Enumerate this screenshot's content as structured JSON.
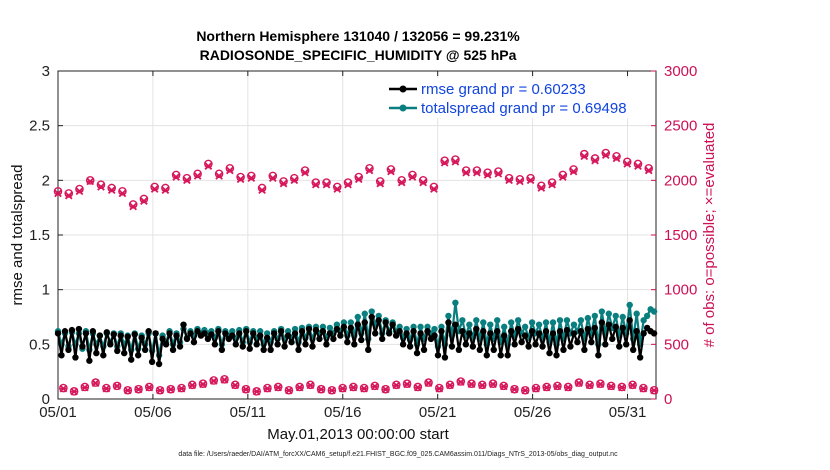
{
  "chart_data": {
    "type": "line",
    "title": "Northern Hemisphere 131040 / 132056 = 99.231%",
    "subtitle": "RADIOSONDE_SPECIFIC_HUMIDITY @ 525 hPa",
    "xlabel": "May.01,2013 00:00:00 start",
    "ylabel_left": "rmse and totalspread",
    "ylabel_right": "# of obs: o=possible; ×=evaluated",
    "xlim": [
      0,
      31.5
    ],
    "ylim_left": [
      0,
      3
    ],
    "ylim_right": [
      0,
      3000
    ],
    "grid": true,
    "x_ticks": [
      0,
      5,
      10,
      15,
      20,
      25,
      30
    ],
    "x_tick_labels": [
      "05/01",
      "05/06",
      "05/11",
      "05/16",
      "05/21",
      "05/26",
      "05/31"
    ],
    "y_left_ticks": [
      0,
      0.5,
      1,
      1.5,
      2,
      2.5,
      3
    ],
    "y_left_tick_labels": [
      "0",
      "0.5",
      "1",
      "1.5",
      "2",
      "2.5",
      "3"
    ],
    "y_right_ticks": [
      0,
      500,
      1000,
      1500,
      2000,
      2500,
      3000
    ],
    "y_right_tick_labels": [
      "0",
      "500",
      "1000",
      "1500",
      "2000",
      "2500",
      "3000"
    ],
    "legend_position": "top-right",
    "colors": {
      "rmse": "#000000",
      "spread": "#0b7f7f",
      "obs": "#d6175b"
    },
    "series": [
      {
        "name": "rmse grand pr = 0.60233",
        "axis": "left",
        "values": [
          0.6,
          0.4,
          0.62,
          0.45,
          0.63,
          0.38,
          0.64,
          0.48,
          0.6,
          0.35,
          0.62,
          0.42,
          0.58,
          0.4,
          0.61,
          0.5,
          0.59,
          0.44,
          0.58,
          0.42,
          0.57,
          0.36,
          0.59,
          0.4,
          0.56,
          0.45,
          0.62,
          0.34,
          0.6,
          0.32,
          0.55,
          0.5,
          0.6,
          0.45,
          0.58,
          0.48,
          0.68,
          0.55,
          0.6,
          0.52,
          0.62,
          0.58,
          0.6,
          0.55,
          0.59,
          0.5,
          0.62,
          0.45,
          0.6,
          0.55,
          0.58,
          0.5,
          0.6,
          0.48,
          0.62,
          0.46,
          0.6,
          0.5,
          0.58,
          0.45,
          0.56,
          0.45,
          0.6,
          0.5,
          0.62,
          0.48,
          0.58,
          0.52,
          0.6,
          0.45,
          0.62,
          0.5,
          0.64,
          0.48,
          0.63,
          0.55,
          0.62,
          0.5,
          0.6,
          0.55,
          0.64,
          0.58,
          0.66,
          0.52,
          0.65,
          0.5,
          0.68,
          0.54,
          0.7,
          0.45,
          0.75,
          0.6,
          0.72,
          0.55,
          0.7,
          0.6,
          0.68,
          0.58,
          0.62,
          0.5,
          0.6,
          0.48,
          0.62,
          0.42,
          0.6,
          0.45,
          0.62,
          0.55,
          0.58,
          0.4,
          0.62,
          0.38,
          0.7,
          0.48,
          0.68,
          0.45,
          0.62,
          0.5,
          0.6,
          0.48,
          0.64,
          0.45,
          0.62,
          0.4,
          0.6,
          0.45,
          0.62,
          0.4,
          0.58,
          0.4,
          0.62,
          0.5,
          0.64,
          0.52,
          0.58,
          0.48,
          0.62,
          0.5,
          0.6,
          0.48,
          0.62,
          0.42,
          0.6,
          0.4,
          0.62,
          0.45,
          0.63,
          0.48,
          0.6,
          0.52,
          0.62,
          0.45,
          0.64,
          0.52,
          0.65,
          0.4,
          0.7,
          0.5,
          0.68,
          0.55,
          0.66,
          0.48,
          0.65,
          0.5,
          0.72,
          0.45,
          0.62,
          0.38,
          0.6,
          0.65,
          0.62,
          0.6
        ],
        "marker": "filled-circle"
      },
      {
        "name": "totalspread grand pr = 0.69498",
        "axis": "left",
        "values": [
          0.62,
          0.5,
          0.6,
          0.48,
          0.61,
          0.5,
          0.6,
          0.46,
          0.62,
          0.45,
          0.6,
          0.5,
          0.58,
          0.48,
          0.6,
          0.52,
          0.6,
          0.48,
          0.6,
          0.5,
          0.58,
          0.45,
          0.6,
          0.46,
          0.58,
          0.5,
          0.6,
          0.44,
          0.6,
          0.4,
          0.58,
          0.52,
          0.62,
          0.5,
          0.6,
          0.52,
          0.64,
          0.56,
          0.62,
          0.58,
          0.64,
          0.6,
          0.63,
          0.6,
          0.62,
          0.56,
          0.64,
          0.5,
          0.62,
          0.58,
          0.62,
          0.55,
          0.63,
          0.52,
          0.64,
          0.52,
          0.62,
          0.56,
          0.62,
          0.5,
          0.6,
          0.52,
          0.62,
          0.55,
          0.64,
          0.55,
          0.62,
          0.56,
          0.64,
          0.52,
          0.65,
          0.56,
          0.66,
          0.55,
          0.66,
          0.6,
          0.66,
          0.56,
          0.65,
          0.6,
          0.68,
          0.62,
          0.7,
          0.58,
          0.7,
          0.58,
          0.75,
          0.6,
          0.78,
          0.55,
          0.8,
          0.68,
          0.76,
          0.6,
          0.72,
          0.62,
          0.7,
          0.62,
          0.66,
          0.56,
          0.64,
          0.54,
          0.66,
          0.5,
          0.66,
          0.55,
          0.66,
          0.6,
          0.64,
          0.48,
          0.66,
          0.5,
          0.76,
          0.58,
          0.88,
          0.62,
          0.72,
          0.58,
          0.68,
          0.56,
          0.72,
          0.55,
          0.7,
          0.5,
          0.68,
          0.55,
          0.72,
          0.52,
          0.66,
          0.5,
          0.7,
          0.58,
          0.72,
          0.6,
          0.66,
          0.56,
          0.7,
          0.6,
          0.68,
          0.55,
          0.7,
          0.52,
          0.7,
          0.5,
          0.72,
          0.55,
          0.72,
          0.6,
          0.68,
          0.62,
          0.72,
          0.55,
          0.74,
          0.6,
          0.76,
          0.5,
          0.8,
          0.6,
          0.78,
          0.65,
          0.76,
          0.58,
          0.75,
          0.6,
          0.86,
          0.55,
          0.78,
          0.5,
          0.72,
          0.76,
          0.82,
          0.8
        ],
        "marker": "filled-circle"
      },
      {
        "name": "possible obs",
        "axis": "right",
        "values": [
          1900,
          100,
          1880,
          70,
          1920,
          110,
          2000,
          150,
          1960,
          100,
          1930,
          120,
          1900,
          80,
          1780,
          90,
          1830,
          110,
          1940,
          80,
          1930,
          90,
          2050,
          100,
          2020,
          130,
          2060,
          140,
          2150,
          170,
          2060,
          180,
          2110,
          130,
          2030,
          90,
          2040,
          70,
          1930,
          100,
          2040,
          110,
          1990,
          80,
          2020,
          110,
          2090,
          130,
          1980,
          90,
          1980,
          80,
          1940,
          100,
          1980,
          110,
          2030,
          100,
          2110,
          120,
          1990,
          90,
          2100,
          130,
          2000,
          140,
          2050,
          110,
          2000,
          150,
          1940,
          100,
          2180,
          130,
          2190,
          160,
          2090,
          140,
          2090,
          130,
          2070,
          140,
          2080,
          120,
          2020,
          90,
          2010,
          80,
          2020,
          100,
          1950,
          110,
          1980,
          120,
          2050,
          110,
          2100,
          150,
          2240,
          130,
          2200,
          140,
          2250,
          120,
          2220,
          110,
          2170,
          130,
          2150,
          100,
          2110,
          80
        ],
        "marker": "circle"
      },
      {
        "name": "evaluated obs",
        "axis": "right",
        "values": [
          1880,
          95,
          1860,
          68,
          1900,
          105,
          1990,
          145,
          1940,
          95,
          1910,
          118,
          1880,
          78,
          1760,
          88,
          1810,
          105,
          1920,
          78,
          1910,
          88,
          2030,
          95,
          2000,
          125,
          2040,
          135,
          2130,
          165,
          2040,
          175,
          2090,
          125,
          2010,
          88,
          2020,
          68,
          1910,
          95,
          2020,
          105,
          1970,
          78,
          2000,
          105,
          2070,
          125,
          1960,
          88,
          1960,
          78,
          1920,
          95,
          1960,
          105,
          2010,
          95,
          2090,
          115,
          1970,
          88,
          2080,
          125,
          1980,
          135,
          2030,
          105,
          1980,
          145,
          1920,
          95,
          2160,
          125,
          2170,
          155,
          2070,
          135,
          2070,
          125,
          2050,
          135,
          2060,
          115,
          2000,
          88,
          1990,
          78,
          2000,
          95,
          1930,
          105,
          1960,
          115,
          2030,
          105,
          2080,
          145,
          2220,
          125,
          2180,
          135,
          2230,
          115,
          2200,
          105,
          2150,
          125,
          2130,
          95,
          2090,
          78
        ],
        "marker": "x"
      }
    ],
    "footnote": "data file: /Users/raeder/DAI/ATM_forcXX/CAM6_setup/f.e21.FHIST_BGC.f09_025.CAM6assim.011/Diags_NTrS_2013-05/obs_diag_output.nc"
  }
}
